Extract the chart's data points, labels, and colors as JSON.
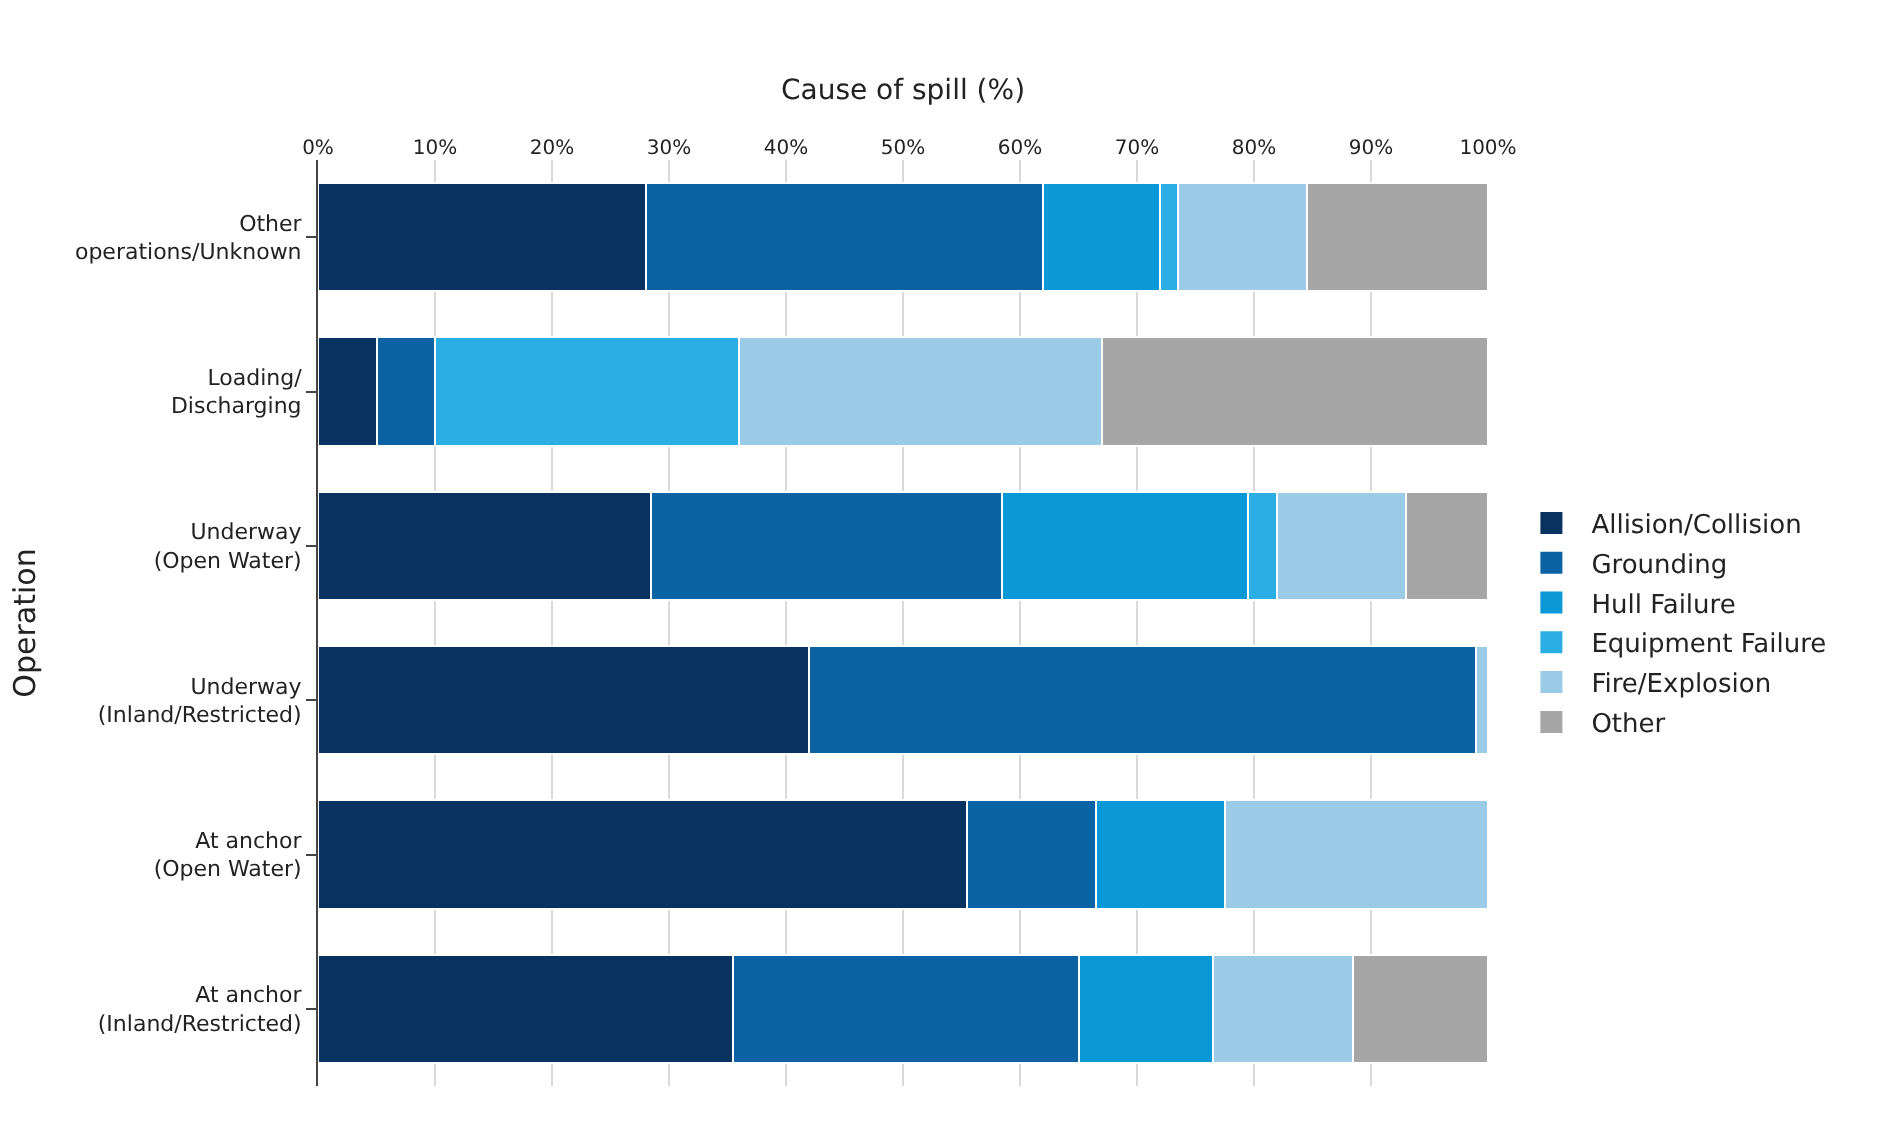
{
  "chart_data": {
    "type": "bar",
    "orientation": "horizontal",
    "stacked": true,
    "xlabel": "Cause of spill (%)",
    "ylabel": "Operation",
    "categories": [
      "Other\noperations/Unknown",
      "Loading/\nDischarging",
      "Underway\n(Open Water)",
      "Underway\n(Inland/Restricted)",
      "At anchor\n(Open Water)",
      "At anchor\n(Inland/Restricted)"
    ],
    "series": [
      {
        "name": "Allision/Collision",
        "color": "#0a3260",
        "values": [
          28,
          5,
          28.5,
          42,
          55.5,
          35.5
        ]
      },
      {
        "name": "Grounding",
        "color": "#0b63a5",
        "values": [
          34,
          5,
          30,
          57,
          11,
          29.5
        ]
      },
      {
        "name": "Hull Failure",
        "color": "#0a98d6",
        "values": [
          10,
          0,
          21,
          0,
          11,
          11.5
        ]
      },
      {
        "name": "Equipment Failure",
        "color": "#2aaee4",
        "values": [
          1.5,
          26,
          2.5,
          0,
          0,
          0
        ]
      },
      {
        "name": "Fire/Explosion",
        "color": "#9ccbe8",
        "values": [
          11,
          31,
          11,
          1,
          22.5,
          12
        ]
      },
      {
        "name": "Other",
        "color": "#a6a6a6",
        "values": [
          15.5,
          33,
          7,
          0,
          0,
          11.5
        ]
      }
    ],
    "xlim": [
      0,
      100
    ],
    "xticks": [
      {
        "value": 0,
        "label": "0%"
      },
      {
        "value": 10,
        "label": "10%"
      },
      {
        "value": 20,
        "label": "20%"
      },
      {
        "value": 30,
        "label": "30%"
      },
      {
        "value": 40,
        "label": "40%"
      },
      {
        "value": 50,
        "label": "50%"
      },
      {
        "value": 60,
        "label": "60%"
      },
      {
        "value": 70,
        "label": "70%"
      },
      {
        "value": 80,
        "label": "80%"
      },
      {
        "value": 90,
        "label": "90%"
      },
      {
        "value": 100,
        "label": "100%"
      }
    ],
    "grid": "x",
    "legend": "right"
  }
}
